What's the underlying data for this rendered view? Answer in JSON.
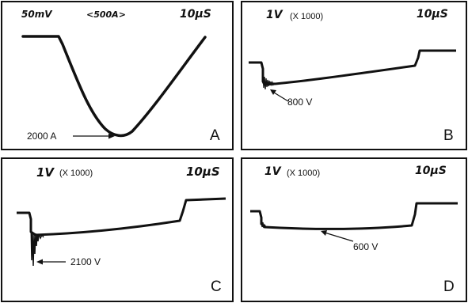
{
  "panels": {
    "a": {
      "letter": "A",
      "volts_div": "50mV",
      "scale": "<500A>",
      "time_div": "10µS",
      "annotation": "2000 A"
    },
    "b": {
      "letter": "B",
      "volts_div": "1V",
      "multiplier": "(X 1000)",
      "time_div": "10µS",
      "annotation": "800 V"
    },
    "c": {
      "letter": "C",
      "volts_div": "1V",
      "multiplier": "(X 1000)",
      "time_div": "10µS",
      "annotation": "2100 V"
    },
    "d": {
      "letter": "D",
      "volts_div": "1V",
      "multiplier": "(X 1000)",
      "time_div": "10µS",
      "annotation": "600 V"
    }
  }
}
